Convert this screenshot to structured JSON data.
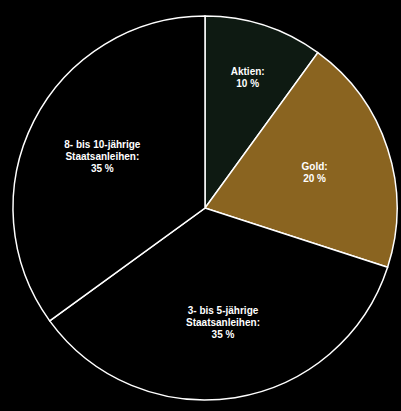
{
  "chart_data": {
    "type": "pie",
    "categories": [
      "Aktien:",
      "Gold:",
      "3- bis 5-jährige Staatsanleihen:",
      "8- bis 10-jährige Staatsanleihen:"
    ],
    "values": [
      10,
      20,
      35,
      35
    ],
    "value_labels": [
      "10 %",
      "20 %",
      "35 %",
      "35 %"
    ],
    "colors": [
      "#0e1a12",
      "#8a6420",
      "#000000",
      "#000000"
    ],
    "data_labels": true
  }
}
